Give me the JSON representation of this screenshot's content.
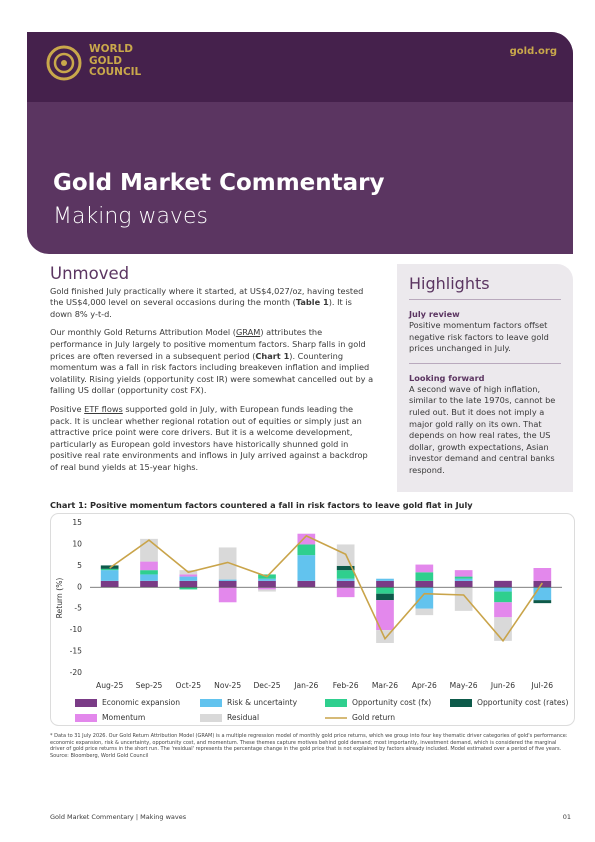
{
  "header": {
    "logo": [
      "WORLD",
      "GOLD",
      "COUNCIL"
    ],
    "site": "gold.org",
    "title": "Gold Market Commentary",
    "subtitle": "Making waves"
  },
  "body": {
    "heading": "Unmoved",
    "paragraphs": [
      [
        "Gold finished July practically where it started, at US$4,027/oz, having tested the US$4,000 level on several occasions during the month (",
        "Table 1",
        "). It is down 8% y-t-d."
      ],
      [
        "Our monthly Gold Returns Attribution Model (",
        "GRAM",
        ") attributes the performance in July largely to positive momentum factors. Sharp falls in gold prices are often reversed in a subsequent period (",
        "Chart 1",
        "). Countering momentum was a fall in risk factors including breakeven inflation and implied volatility. Rising yields (opportunity cost IR) were somewhat cancelled out by a falling US dollar (opportunity cost FX)."
      ],
      [
        "Positive ",
        "ETF flows",
        " supported gold in July, with European funds leading the pack. It is unclear whether regional rotation out of equities or simply just an attractive price point were core drivers. But it is a welcome development, particularly as European gold investors have historically shunned gold in positive real rate environments and inflows in July arrived against a backdrop of real bund yields at 15-year highs."
      ]
    ]
  },
  "highlights": {
    "title": "Highlights",
    "items": [
      {
        "label": "July review",
        "text": "Positive momentum factors offset negative risk factors to leave gold prices unchanged in July."
      },
      {
        "label": "Looking forward",
        "text": "A second wave of high inflation, similar to the late 1970s, cannot be ruled out. But it does not imply a major gold rally on its own. That depends on how real rates, the US dollar, growth expectations, Asian investor demand and central banks respond."
      }
    ]
  },
  "chart_data": {
    "type": "bar",
    "stacked": true,
    "title": "Chart 1: Positive momentum factors countered a fall in risk factors to leave gold flat in July",
    "y_label": "Return (%)",
    "categories": [
      "Aug-25",
      "Sep-25",
      "Oct-25",
      "Nov-25",
      "Dec-25",
      "Jan-26",
      "Feb-26",
      "Mar-26",
      "Apr-26",
      "May-26",
      "Jun-26",
      "Jul-26"
    ],
    "series": [
      {
        "name": "Economic expansion",
        "color": "#7a3b86",
        "values": [
          1.5,
          1.5,
          1.5,
          1.5,
          1.5,
          1.5,
          1.5,
          1.5,
          1.5,
          1.5,
          1.5,
          1.5
        ]
      },
      {
        "name": "Risk & uncertainty",
        "color": "#62c3ee",
        "values": [
          2.5,
          1.5,
          1,
          0.3,
          0.5,
          6,
          0.5,
          0.5,
          -5,
          0.5,
          -1,
          -3
        ]
      },
      {
        "name": "Opportunity cost (fx)",
        "color": "#2fcf8e",
        "values": [
          0.3,
          1,
          -0.5,
          0,
          1,
          2.5,
          2,
          -1.5,
          2,
          0.5,
          -2.5,
          0
        ]
      },
      {
        "name": "Opportunity cost (rates)",
        "color": "#0d5a4a",
        "values": [
          0.8,
          0,
          0,
          0,
          0,
          0,
          1,
          -1.5,
          0,
          0,
          0,
          -0.7
        ]
      },
      {
        "name": "Momentum",
        "color": "#e388ec",
        "values": [
          0,
          2,
          0.5,
          -3.5,
          -0.5,
          2.5,
          -2.3,
          -7,
          1.8,
          1.5,
          -3.5,
          3
        ]
      },
      {
        "name": "Residual",
        "color": "#d9d9d9",
        "values": [
          0,
          5.3,
          1,
          7.5,
          -0.5,
          0,
          5,
          -3,
          -1.5,
          -5.5,
          -5.5,
          0
        ]
      },
      {
        "name": "Gold return",
        "color": "#c9a44a",
        "type": "line",
        "values": [
          4.5,
          11,
          3.5,
          5.8,
          2.5,
          12,
          7.7,
          -12,
          -1.5,
          -1.8,
          -12.5,
          1
        ]
      }
    ],
    "ylim": [
      -20,
      15
    ],
    "yticks": [
      -20,
      -15,
      -10,
      -5,
      0,
      5,
      10,
      15
    ],
    "grid": false
  },
  "footnote": [
    "* Data to 31 July 2026. Our Gold Return Attribution Model (GRAM) is a multiple regression model of monthly gold price returns, which we group into four key thematic driver categories of gold's performance: economic expansion, risk & uncertainty, opportunity cost, and momentum. These themes capture motives behind gold demand; most importantly, investment demand, which is considered the marginal driver of gold price returns in the short run. The 'residual' represents the percentage change in the gold price that is not explained by factors already included. Model estimated over a period of five years.",
    "Source: Bloomberg, World Gold Council"
  ],
  "footer": {
    "left": "Gold Market Commentary | Making waves",
    "page": "01"
  }
}
